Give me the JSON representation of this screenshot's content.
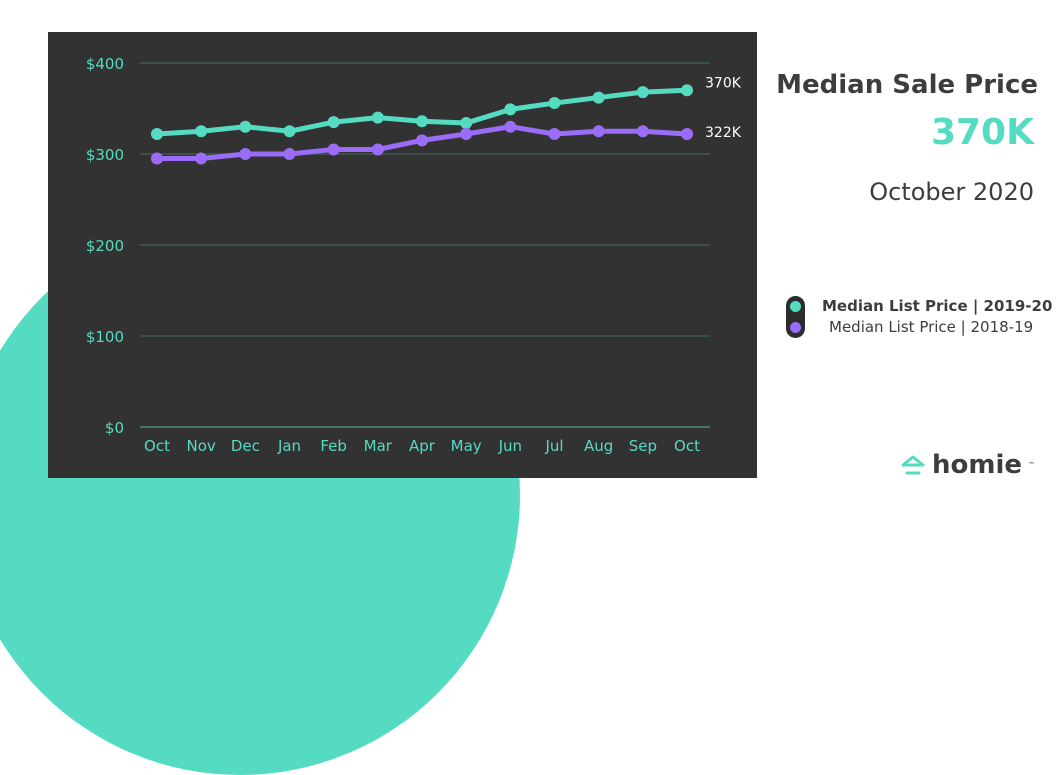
{
  "header": {
    "title": "Median Sale Price",
    "value": "370K",
    "date": "October 2020"
  },
  "legend": [
    {
      "label": "Median List Price | 2019-20",
      "color": "#55dbc2"
    },
    {
      "label": "Median List Price | 2018-19",
      "color": "#9b6cf7"
    }
  ],
  "brand": {
    "name": "homie",
    "tm": "™"
  },
  "chart_data": {
    "type": "line",
    "x": [
      "Oct",
      "Nov",
      "Dec",
      "Jan",
      "Feb",
      "Mar",
      "Apr",
      "May",
      "Jun",
      "Jul",
      "Aug",
      "Sep",
      "Oct"
    ],
    "yticks": [
      "$0",
      "$100",
      "$200",
      "$300",
      "$400"
    ],
    "ylim": [
      0,
      400
    ],
    "grid": true,
    "series": [
      {
        "name": "Median List Price | 2019-20",
        "color": "#55dbc2",
        "values": [
          322,
          325,
          330,
          325,
          335,
          340,
          336,
          334,
          349,
          356,
          362,
          368,
          370
        ],
        "end_label": "370K"
      },
      {
        "name": "Median List Price | 2018-19",
        "color": "#9b6cf7",
        "values": [
          295,
          295,
          300,
          300,
          305,
          305,
          315,
          322,
          330,
          322,
          325,
          325,
          322
        ],
        "end_label": "322K"
      }
    ]
  }
}
